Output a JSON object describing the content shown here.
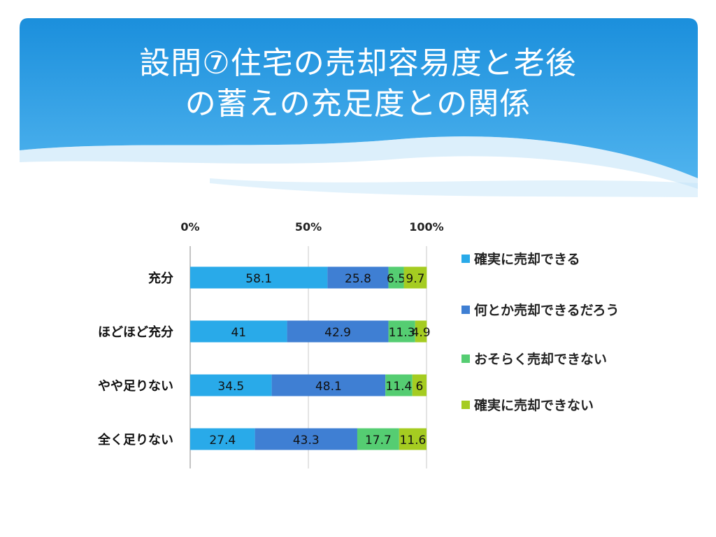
{
  "slide": {
    "title_lines": [
      "設問⑦住宅の売却容易度と老後",
      "の蓄えの充足度との関係"
    ]
  },
  "colors": {
    "banner_top": "#1b8fdc",
    "banner_bottom": "#4fb3ee",
    "wave_light": "#bfe2f8"
  },
  "chart_data": {
    "type": "bar",
    "orientation": "horizontal",
    "stacked": true,
    "percent": true,
    "categories": [
      "充分",
      "ほどほど充分",
      "やや足りない",
      "全く足りない"
    ],
    "series": [
      {
        "name": "確実に売却できる",
        "values": [
          58.1,
          41,
          34.5,
          27.4
        ],
        "color": "#29aae9"
      },
      {
        "name": "何とか売却できるだろう",
        "values": [
          25.8,
          42.9,
          48.1,
          43.3
        ],
        "color": "#3f7fd3"
      },
      {
        "name": "おそらく売却できない",
        "values": [
          6.5,
          11.3,
          11.4,
          17.7
        ],
        "color": "#55cd72"
      },
      {
        "name": "確実に売却できない",
        "values": [
          9.7,
          4.9,
          6,
          11.6
        ],
        "color": "#a5cc21"
      }
    ],
    "x_ticks": [
      "0%",
      "50%",
      "100%"
    ],
    "xlim": [
      0,
      100
    ],
    "grid": true,
    "legend_position": "right"
  }
}
